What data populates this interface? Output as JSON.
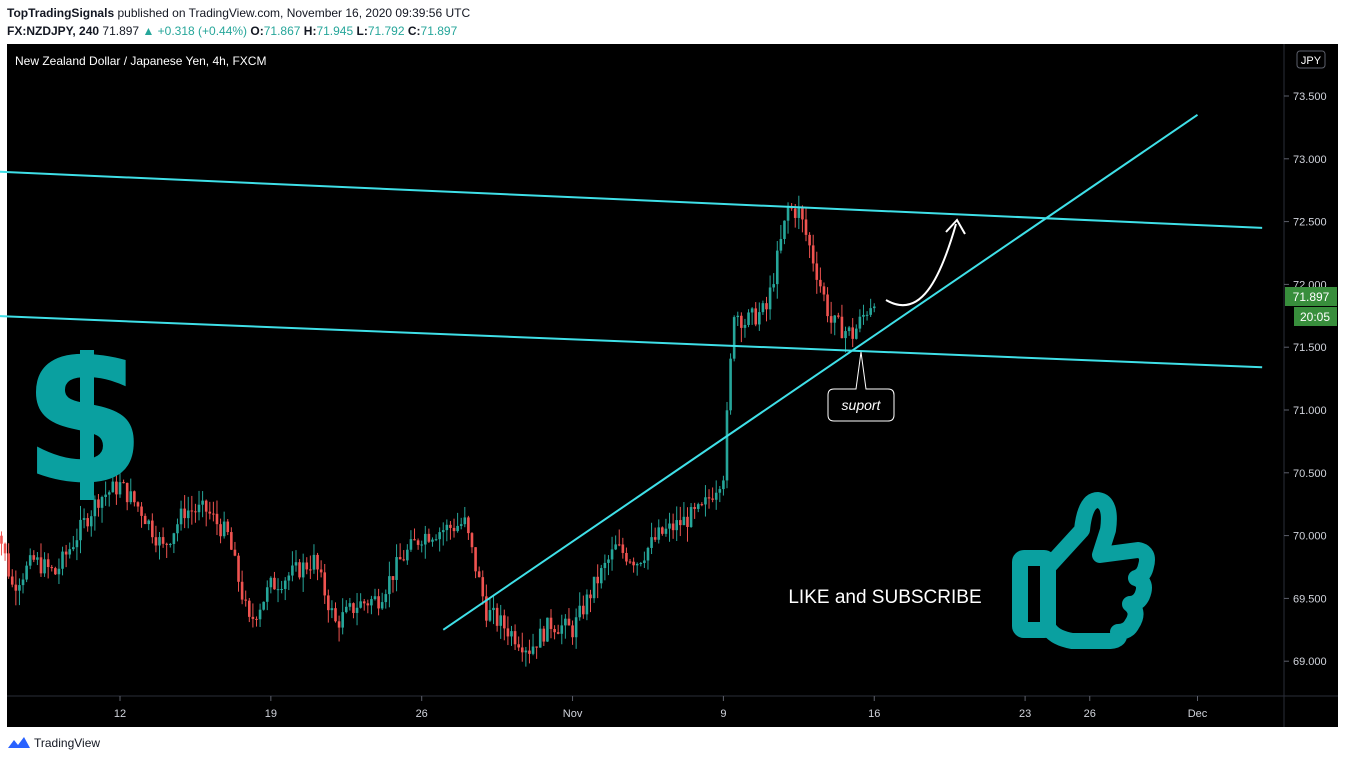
{
  "header": {
    "publisher": "TopTradingSignals",
    "published_text": "published on TradingView.com, November 16, 2020 09:39:56 UTC",
    "symbol": "FX:NZDJPY",
    "interval": "240",
    "last": "71.897",
    "change": "▲ +0.318 (+0.44%)",
    "o_label": "O:",
    "o_value": "71.867",
    "h_label": "H:",
    "h_value": "71.945",
    "l_label": "L:",
    "l_value": "71.792",
    "c_label": "C:",
    "c_value": "71.897"
  },
  "footer": {
    "brand": "TradingView"
  },
  "colors": {
    "background": "#000000",
    "up": "#26a69a",
    "down": "#ef5350",
    "trendline": "#3fe0e8",
    "teal_graphic": "#0aa0a0",
    "price_label": "#388e3c"
  },
  "chart_data": {
    "type": "candlestick",
    "title": "New Zealand Dollar / Japanese Yen, 4h, FXCM",
    "currency": "JPY",
    "y_ticks": [
      "73.500",
      "73.000",
      "72.500",
      "72.000",
      "71.500",
      "71.000",
      "70.500",
      "70.000",
      "69.500",
      "69.000"
    ],
    "x_ticks": [
      {
        "label": "12",
        "date": "2020-10-12"
      },
      {
        "label": "19",
        "date": "2020-10-19"
      },
      {
        "label": "26",
        "date": "2020-10-26"
      },
      {
        "label": "Nov",
        "date": "2020-11-02"
      },
      {
        "label": "9",
        "date": "2020-11-09"
      },
      {
        "label": "16",
        "date": "2020-11-16"
      },
      {
        "label": "23",
        "date": "2020-11-23"
      },
      {
        "label": "26",
        "date": "2020-11-26"
      },
      {
        "label": "Dec",
        "date": "2020-12-01"
      }
    ],
    "last_price": "71.897",
    "countdown": "20:05",
    "segments": [
      {
        "date": "2020-10-06",
        "price": 70.3
      },
      {
        "date": "2020-10-07",
        "price": 69.6
      },
      {
        "date": "2020-10-08",
        "price": 69.8
      },
      {
        "date": "2020-10-09",
        "price": 69.7
      },
      {
        "date": "2020-10-11",
        "price": 70.3
      },
      {
        "date": "2020-10-12",
        "price": 70.4
      },
      {
        "date": "2020-10-13",
        "price": 70.2
      },
      {
        "date": "2020-10-14",
        "price": 69.9
      },
      {
        "date": "2020-10-15",
        "price": 70.2
      },
      {
        "date": "2020-10-16",
        "price": 70.2
      },
      {
        "date": "2020-10-17",
        "price": 70.0
      },
      {
        "date": "2020-10-18",
        "price": 69.3
      },
      {
        "date": "2020-10-19",
        "price": 69.6
      },
      {
        "date": "2020-10-20",
        "price": 69.7
      },
      {
        "date": "2020-10-21",
        "price": 69.8
      },
      {
        "date": "2020-10-22",
        "price": 69.3
      },
      {
        "date": "2020-10-23",
        "price": 69.45
      },
      {
        "date": "2020-10-24",
        "price": 69.5
      },
      {
        "date": "2020-10-25",
        "price": 69.8
      },
      {
        "date": "2020-10-26",
        "price": 70.0
      },
      {
        "date": "2020-10-27",
        "price": 70.05
      },
      {
        "date": "2020-10-28",
        "price": 70.1
      },
      {
        "date": "2020-10-29",
        "price": 69.4
      },
      {
        "date": "2020-10-30",
        "price": 69.25
      },
      {
        "date": "2020-10-31",
        "price": 69.1
      },
      {
        "date": "2020-11-01",
        "price": 69.3
      },
      {
        "date": "2020-11-02",
        "price": 69.25
      },
      {
        "date": "2020-11-03",
        "price": 69.6
      },
      {
        "date": "2020-11-04",
        "price": 69.9
      },
      {
        "date": "2020-11-05",
        "price": 69.8
      },
      {
        "date": "2020-11-06",
        "price": 70.0
      },
      {
        "date": "2020-11-07",
        "price": 70.1
      },
      {
        "date": "2020-11-08",
        "price": 70.2
      },
      {
        "date": "2020-11-09",
        "price": 70.5
      },
      {
        "date": "2020-11-09T12",
        "price": 71.8
      },
      {
        "date": "2020-11-10",
        "price": 71.7
      },
      {
        "date": "2020-11-11",
        "price": 71.8
      },
      {
        "date": "2020-11-12",
        "price": 72.6
      },
      {
        "date": "2020-11-12T12",
        "price": 72.58
      },
      {
        "date": "2020-11-13",
        "price": 72.3
      },
      {
        "date": "2020-11-14",
        "price": 71.7
      },
      {
        "date": "2020-11-15",
        "price": 71.6
      },
      {
        "date": "2020-11-15T12",
        "price": 71.75
      },
      {
        "date": "2020-11-16",
        "price": 71.9
      }
    ],
    "lines": [
      {
        "name": "upper-channel",
        "p1": {
          "date": "2020-10-06",
          "price": 72.9
        },
        "p2": {
          "date": "2020-12-04",
          "price": 72.45
        }
      },
      {
        "name": "lower-channel",
        "p1": {
          "date": "2020-10-06",
          "price": 71.75
        },
        "p2": {
          "date": "2020-12-04",
          "price": 71.34
        }
      },
      {
        "name": "rising-trendline",
        "p1": {
          "date": "2020-10-27",
          "price": 69.25
        },
        "p2": {
          "date": "2020-12-01",
          "price": 73.35
        }
      }
    ],
    "annotations": {
      "support_label": "suport",
      "cta": "LIKE and SUBSCRIBE"
    }
  }
}
